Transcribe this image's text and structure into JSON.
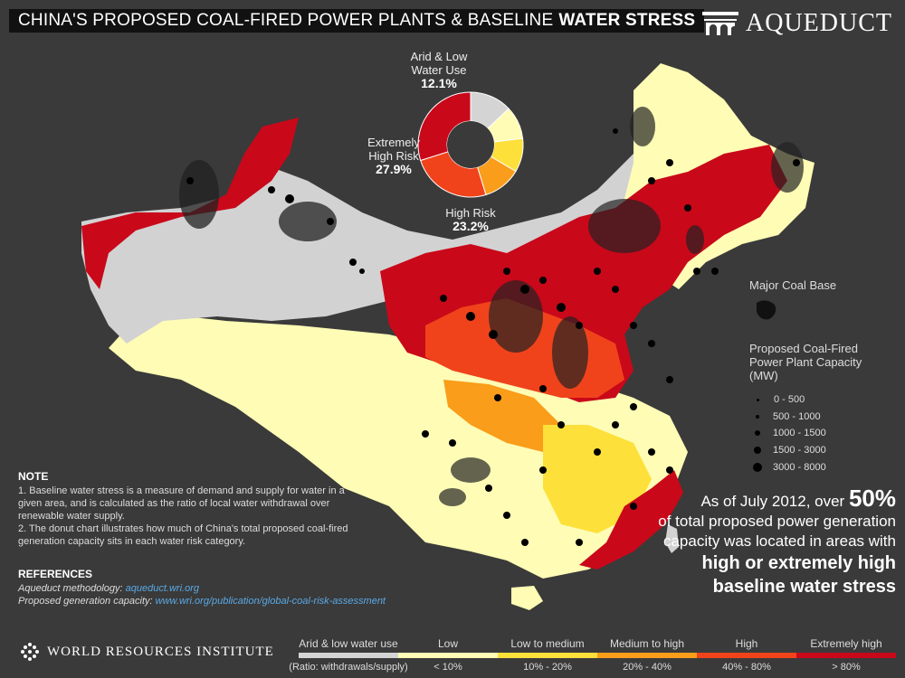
{
  "title": {
    "main": "CHINA'S PROPOSED COAL-FIRED POWER PLANTS & BASELINE",
    "bold": "WATER STRESS"
  },
  "brand": {
    "name": "AQUEDUCT"
  },
  "donut": {
    "slices": [
      {
        "label": "Arid & Low Water Use",
        "pct": "12.1%",
        "value": 12.1,
        "color": "#d4d4d4"
      },
      {
        "label": "Low",
        "pct": "",
        "value": 9.5,
        "color": "#fefcb5"
      },
      {
        "label": "Low to medium",
        "pct": "",
        "value": 9.7,
        "color": "#fde03a"
      },
      {
        "label": "Medium to high",
        "pct": "",
        "value": 11.0,
        "color": "#f99d1a"
      },
      {
        "label": "High Risk",
        "pct": "23.2%",
        "value": 23.2,
        "color": "#f0431b"
      },
      {
        "label": "Extremely High Risk",
        "pct": "27.9%",
        "value": 27.9,
        "color": "#c9081a"
      }
    ],
    "label_arid_line1": "Arid & Low",
    "label_arid_line2": "Water Use",
    "label_arid_pct": "12.1%",
    "label_ext_line1": "Extremely",
    "label_ext_line2": "High Risk",
    "label_ext_pct": "27.9%",
    "label_high_line1": "High Risk",
    "label_high_pct": "23.2%"
  },
  "legend": {
    "coal_base": "Major Coal Base",
    "capacity_title_1": "Proposed Coal-Fired",
    "capacity_title_2": "Power Plant Capacity",
    "capacity_title_3": "(MW)",
    "sizes": [
      "0 - 500",
      "500 - 1000",
      "1000 - 1500",
      "1500 - 3000",
      "3000 - 8000"
    ]
  },
  "note": {
    "heading": "NOTE",
    "items": [
      "1. Baseline water stress is a measure of demand and supply for water in a given area, and is calculated as the ratio of local water withdrawal over renewable water supply.",
      "2. The donut chart illustrates how much of China's total proposed coal-fired generation capacity sits in each water risk category."
    ]
  },
  "references": {
    "heading": "REFERENCES",
    "aqueduct_label": "Aqueduct methodology:",
    "aqueduct_link": "aqueduct.wri.org",
    "capacity_label": "Proposed generation capacity:",
    "capacity_link": "www.wri.org/publication/global-coal-risk-assessment"
  },
  "callout": {
    "line1": "As of July 2012, over",
    "pct": "50%",
    "line2": "of total proposed power generation",
    "line3": "capacity was located in areas with",
    "line4": "high or extremely high",
    "line5": "baseline water stress"
  },
  "footer": {
    "org": "WORLD RESOURCES INSTITUTE"
  },
  "scale": {
    "ratio_label": "(Ratio: withdrawals/supply)",
    "categories": [
      {
        "label": "Arid & low water use",
        "range": "",
        "color": "#d4d4d4"
      },
      {
        "label": "Low",
        "range": "< 10%",
        "color": "#fefcb5"
      },
      {
        "label": "Low to medium",
        "range": "10% - 20%",
        "color": "#fde03a"
      },
      {
        "label": "Medium to high",
        "range": "20% - 40%",
        "color": "#f99d1a"
      },
      {
        "label": "High",
        "range": "40% - 80%",
        "color": "#f0431b"
      },
      {
        "label": "Extremely high",
        "range": "> 80%",
        "color": "#c9081a"
      }
    ]
  },
  "colors": {
    "background": "#3a3a3a",
    "link": "#5aa9e6"
  }
}
